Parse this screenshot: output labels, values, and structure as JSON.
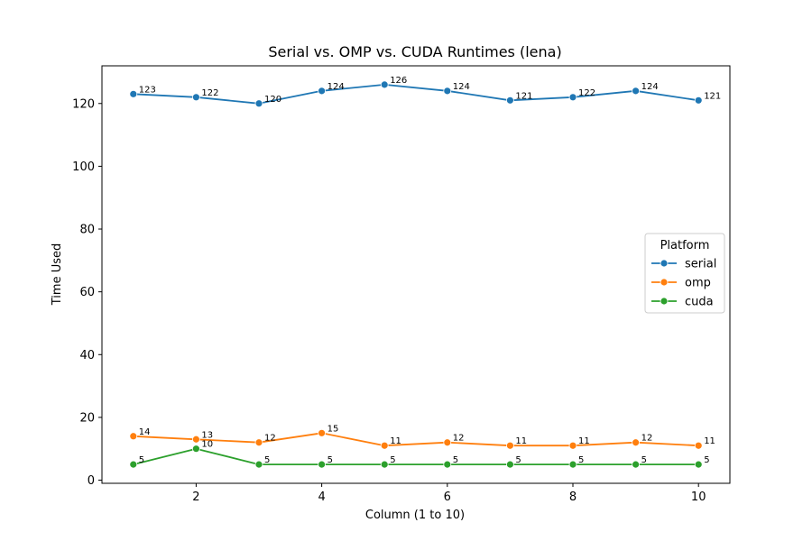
{
  "chart_data": {
    "type": "line",
    "title": "Serial vs. OMP vs. CUDA Runtimes (lena)",
    "xlabel": "Column (1 to 10)",
    "ylabel": "Time Used",
    "x": [
      1,
      2,
      3,
      4,
      5,
      6,
      7,
      8,
      9,
      10
    ],
    "xticks": [
      2,
      4,
      6,
      8,
      10
    ],
    "yticks": [
      0,
      20,
      40,
      60,
      80,
      100,
      120
    ],
    "xlim": [
      0.5,
      10.5
    ],
    "ylim": [
      -1,
      132
    ],
    "grid": false,
    "legend": {
      "title": "Platform",
      "placement": "center-right"
    },
    "series": [
      {
        "name": "serial",
        "color": "#1f77b4",
        "values": [
          123,
          122,
          120,
          124,
          126,
          124,
          121,
          122,
          124,
          121
        ]
      },
      {
        "name": "omp",
        "color": "#ff7f0e",
        "values": [
          14,
          13,
          12,
          15,
          11,
          12,
          11,
          11,
          12,
          11
        ]
      },
      {
        "name": "cuda",
        "color": "#2ca02c",
        "values": [
          5,
          10,
          5,
          5,
          5,
          5,
          5,
          5,
          5,
          5
        ]
      }
    ]
  }
}
